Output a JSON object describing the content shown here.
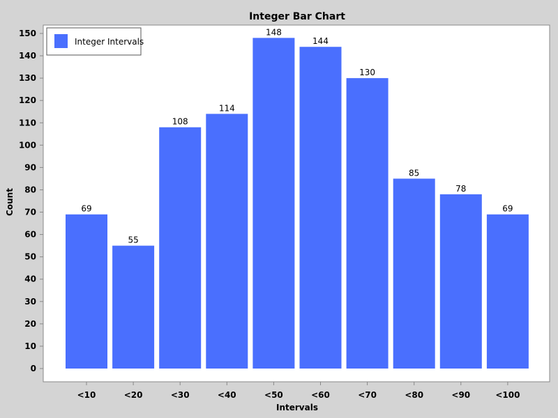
{
  "chart_data": {
    "type": "bar",
    "title": "Integer Bar Chart",
    "xlabel": "Intervals",
    "ylabel": "Count",
    "categories": [
      "<10",
      "<20",
      "<30",
      "<40",
      "<50",
      "<60",
      "<70",
      "<80",
      "<90",
      "<100"
    ],
    "series": [
      {
        "name": "Integer Intervals",
        "values": [
          69,
          55,
          108,
          114,
          148,
          144,
          130,
          85,
          78,
          69
        ]
      }
    ],
    "ylim": [
      0,
      150
    ],
    "yticks": [
      0,
      10,
      20,
      30,
      40,
      50,
      60,
      70,
      80,
      90,
      100,
      110,
      120,
      130,
      140,
      150
    ],
    "grid": false,
    "legend_position": "top-left",
    "show_data_labels": true,
    "bar_color": "#4a6ffe",
    "plot_background": "#ffffff",
    "page_background": "#d4d4d4"
  }
}
